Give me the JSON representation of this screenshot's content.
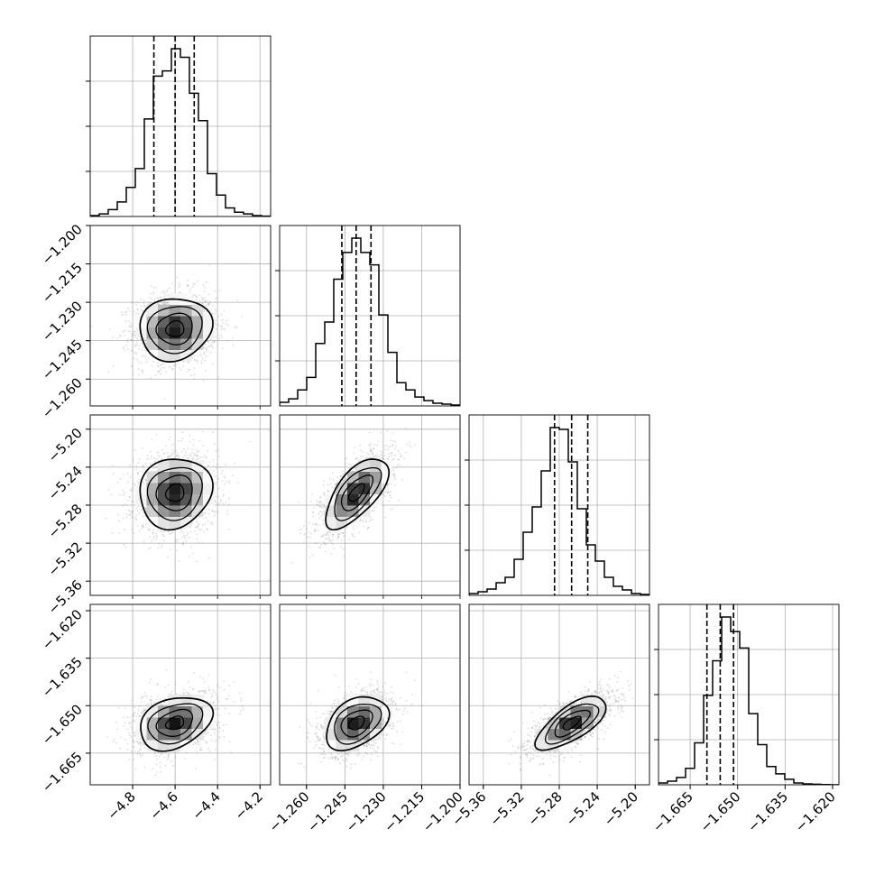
{
  "chart_data": {
    "type": "corner",
    "grid": true,
    "parameters": [
      {
        "range": [
          -5.0,
          -4.15
        ],
        "ticks": [
          -4.8,
          -4.6,
          -4.4,
          -4.2
        ],
        "tick_labels": [
          "−4.8",
          "−4.6",
          "−4.4",
          "−4.2"
        ],
        "mean": -4.6,
        "sd": 0.085,
        "quantiles": [
          -4.7,
          -4.6,
          -4.51
        ],
        "hist_bins": [
          0.005,
          0.015,
          0.04,
          0.085,
          0.17,
          0.28,
          0.57,
          0.82,
          0.85,
          0.98,
          0.93,
          0.72,
          0.56,
          0.25,
          0.125,
          0.05,
          0.025,
          0.015,
          0.005,
          0.002
        ]
      },
      {
        "range": [
          -1.2705,
          -1.2
        ],
        "ticks": [
          -1.26,
          -1.245,
          -1.23,
          -1.215,
          -1.2
        ],
        "tick_labels": [
          "−1.260",
          "−1.245",
          "−1.230",
          "−1.215",
          "−1.200"
        ],
        "mean": -1.2404,
        "sd": 0.0061,
        "quantiles": [
          -1.2462,
          -1.2406,
          -1.2348
        ],
        "hist_bins": [
          0.02,
          0.04,
          0.09,
          0.16,
          0.35,
          0.47,
          0.71,
          0.86,
          0.94,
          0.86,
          0.79,
          0.51,
          0.3,
          0.13,
          0.09,
          0.05,
          0.03,
          0.015,
          0.01,
          0.005
        ]
      },
      {
        "range": [
          -5.375,
          -5.185
        ],
        "ticks": [
          -5.36,
          -5.32,
          -5.28,
          -5.24,
          -5.2
        ],
        "tick_labels": [
          "−5.36",
          "−5.32",
          "−5.28",
          "−5.24",
          "−5.20"
        ],
        "mean": -5.267,
        "sd": 0.0185,
        "quantiles": [
          -5.285,
          -5.267,
          -5.25
        ],
        "hist_bins": [
          0.01,
          0.02,
          0.035,
          0.07,
          0.1,
          0.2,
          0.35,
          0.49,
          0.69,
          0.93,
          0.92,
          0.74,
          0.48,
          0.28,
          0.19,
          0.1,
          0.05,
          0.03,
          0.01,
          0.005
        ]
      },
      {
        "range": [
          -1.675,
          -1.618
        ],
        "ticks": [
          -1.665,
          -1.65,
          -1.635,
          -1.62
        ],
        "tick_labels": [
          "−1.665",
          "−1.650",
          "−1.635",
          "−1.620"
        ],
        "mean": -1.6555,
        "sd": 0.0042,
        "quantiles": [
          -1.6597,
          -1.6555,
          -1.6513
        ],
        "hist_bins": [
          0.01,
          0.02,
          0.04,
          0.09,
          0.23,
          0.49,
          0.68,
          0.92,
          0.84,
          0.75,
          0.39,
          0.22,
          0.1,
          0.06,
          0.03,
          0.01,
          0.005,
          0.003,
          0.001,
          0.0
        ]
      }
    ],
    "correlations": [
      {
        "x": 0,
        "y": 1,
        "rho": 0.08
      },
      {
        "x": 0,
        "y": 2,
        "rho": 0.1
      },
      {
        "x": 1,
        "y": 2,
        "rho": 0.65
      },
      {
        "x": 0,
        "y": 3,
        "rho": 0.3
      },
      {
        "x": 1,
        "y": 3,
        "rho": 0.38
      },
      {
        "x": 2,
        "y": 3,
        "rho": 0.7
      }
    ],
    "contour_levels": [
      0.118,
      0.393,
      0.675,
      0.865
    ],
    "colors": {
      "line": "#000000",
      "grid": "#b0b0b0",
      "points": "#9a9a9a"
    }
  }
}
